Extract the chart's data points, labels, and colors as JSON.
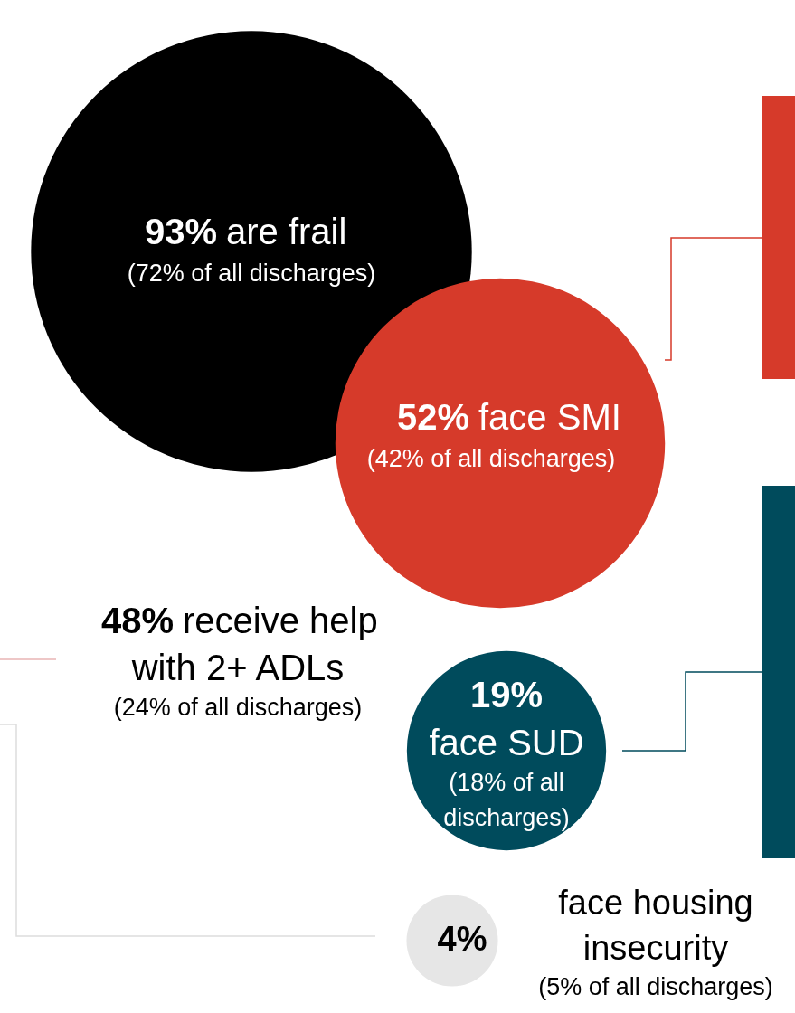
{
  "chart_data": {
    "type": "other",
    "categories": [
      "are frail",
      "face SMI",
      "receive help with 2+ ADLs",
      "face SUD",
      "face housing insecurity"
    ],
    "values": [
      93,
      52,
      48,
      19,
      4
    ],
    "value_labels": [
      "93%",
      "52%",
      "48%",
      "19%",
      "4%"
    ],
    "colors": [
      "#000000",
      "#d63a2a",
      null,
      "#004b5c",
      "#e6e6e6"
    ],
    "annotations": [
      "(72% of all discharges)",
      "(42% of all discharges)",
      "(24% of all discharges)",
      "(18% of all discharges)",
      "(5% of all discharges)"
    ]
  }
}
